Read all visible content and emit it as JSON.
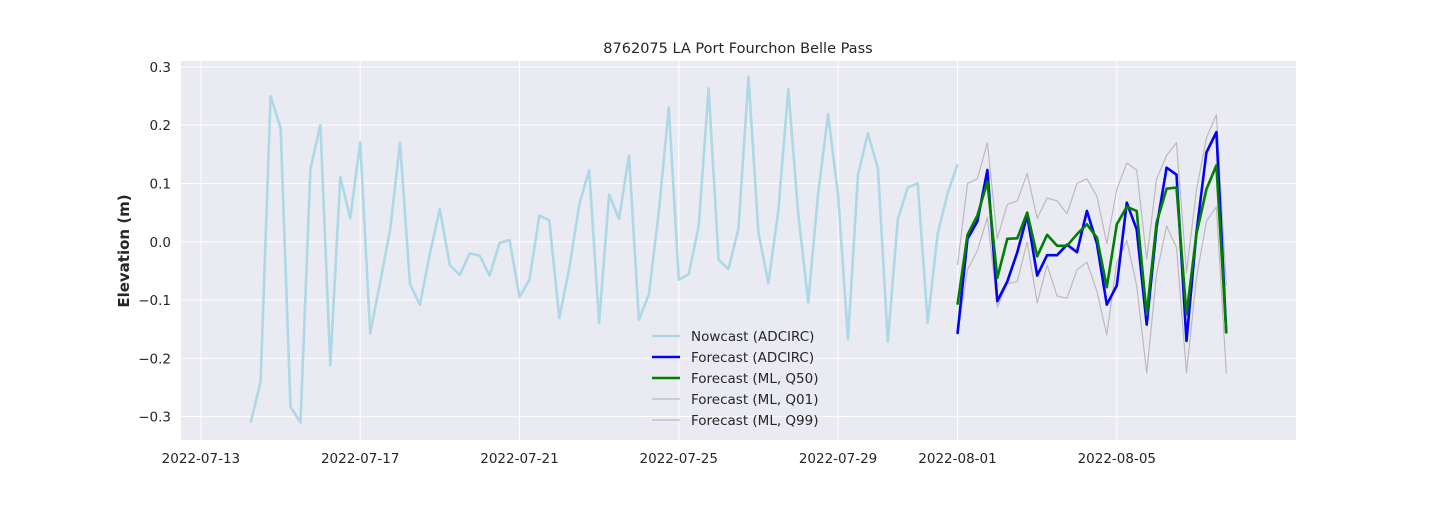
{
  "chart_data": {
    "type": "line",
    "title": "8762075 LA Port Fourchon Belle Pass",
    "xlabel": "",
    "ylabel": "Elevation (m)",
    "x_type": "date",
    "xlim": [
      "2022-07-12 12:00",
      "2022-08-09 12:00"
    ],
    "ylim": [
      -0.34,
      0.31
    ],
    "xticks": [
      "2022-07-13",
      "2022-07-17",
      "2022-07-21",
      "2022-07-25",
      "2022-07-29",
      "2022-08-01",
      "2022-08-05"
    ],
    "yticks": [
      -0.3,
      -0.2,
      -0.1,
      0.0,
      0.1,
      0.2,
      0.3
    ],
    "ytick_labels": [
      "−0.3",
      "−0.2",
      "−0.1",
      "0.0",
      "0.1",
      "0.2",
      "0.3"
    ],
    "grid": true,
    "legend_position": "lower center",
    "background": "#eaeaf2",
    "series": [
      {
        "name": "Nowcast (ADCIRC)",
        "color": "#add8e6",
        "style": "thick",
        "x": [
          "2022-07-14 06:00",
          "2022-07-14 12:00",
          "2022-07-14 18:00",
          "2022-07-15 00:00",
          "2022-07-15 06:00",
          "2022-07-15 12:00",
          "2022-07-15 18:00",
          "2022-07-16 00:00",
          "2022-07-16 06:00",
          "2022-07-16 12:00",
          "2022-07-16 18:00",
          "2022-07-17 00:00",
          "2022-07-17 06:00",
          "2022-07-17 12:00",
          "2022-07-17 18:00",
          "2022-07-18 00:00",
          "2022-07-18 06:00",
          "2022-07-18 12:00",
          "2022-07-18 18:00",
          "2022-07-19 00:00",
          "2022-07-19 06:00",
          "2022-07-19 12:00",
          "2022-07-19 18:00",
          "2022-07-20 00:00",
          "2022-07-20 06:00",
          "2022-07-20 12:00",
          "2022-07-20 18:00",
          "2022-07-21 00:00",
          "2022-07-21 06:00",
          "2022-07-21 12:00",
          "2022-07-21 18:00",
          "2022-07-22 00:00",
          "2022-07-22 06:00",
          "2022-07-22 12:00",
          "2022-07-22 18:00",
          "2022-07-23 00:00",
          "2022-07-23 06:00",
          "2022-07-23 12:00",
          "2022-07-23 18:00",
          "2022-07-24 00:00",
          "2022-07-24 06:00",
          "2022-07-24 12:00",
          "2022-07-24 18:00",
          "2022-07-25 00:00",
          "2022-07-25 06:00",
          "2022-07-25 12:00",
          "2022-07-25 18:00",
          "2022-07-26 00:00",
          "2022-07-26 06:00",
          "2022-07-26 12:00",
          "2022-07-26 18:00",
          "2022-07-27 00:00",
          "2022-07-27 06:00",
          "2022-07-27 12:00",
          "2022-07-27 18:00",
          "2022-07-28 00:00",
          "2022-07-28 06:00",
          "2022-07-28 12:00",
          "2022-07-28 18:00",
          "2022-07-29 00:00",
          "2022-07-29 06:00",
          "2022-07-29 12:00",
          "2022-07-29 18:00",
          "2022-07-30 00:00",
          "2022-07-30 06:00",
          "2022-07-30 12:00",
          "2022-07-30 18:00",
          "2022-07-31 00:00",
          "2022-07-31 06:00",
          "2022-07-31 12:00",
          "2022-07-31 18:00",
          "2022-08-01 00:00"
        ],
        "values": [
          -0.31,
          -0.24,
          0.25,
          0.195,
          -0.283,
          -0.31,
          0.125,
          0.2,
          -0.212,
          0.111,
          0.04,
          0.17,
          -0.157,
          -0.07,
          0.02,
          0.17,
          -0.073,
          -0.108,
          -0.02,
          0.056,
          -0.04,
          -0.057,
          -0.02,
          -0.024,
          -0.058,
          -0.002,
          0.003,
          -0.095,
          -0.065,
          0.045,
          0.037,
          -0.131,
          -0.045,
          0.063,
          0.123,
          -0.139,
          0.081,
          0.039,
          0.148,
          -0.134,
          -0.09,
          0.053,
          0.23,
          -0.065,
          -0.056,
          0.027,
          0.263,
          -0.031,
          -0.047,
          0.023,
          0.283,
          0.016,
          -0.071,
          0.053,
          0.262,
          0.049,
          -0.104,
          0.082,
          0.219,
          0.08,
          -0.167,
          0.115,
          0.186,
          0.126,
          -0.171,
          0.038,
          0.093,
          0.1,
          -0.139,
          0.013,
          0.083,
          0.133
        ]
      },
      {
        "name": "Forecast (ADCIRC)",
        "color": "#0000ff",
        "style": "thick",
        "x": [
          "2022-08-01 00:00",
          "2022-08-01 06:00",
          "2022-08-01 12:00",
          "2022-08-01 18:00",
          "2022-08-02 00:00",
          "2022-08-02 06:00",
          "2022-08-02 12:00",
          "2022-08-02 18:00",
          "2022-08-03 00:00",
          "2022-08-03 06:00",
          "2022-08-03 12:00",
          "2022-08-03 18:00",
          "2022-08-04 00:00",
          "2022-08-04 06:00",
          "2022-08-04 12:00",
          "2022-08-04 18:00",
          "2022-08-05 00:00",
          "2022-08-05 06:00",
          "2022-08-05 12:00",
          "2022-08-05 18:00",
          "2022-08-06 00:00",
          "2022-08-06 06:00",
          "2022-08-06 12:00",
          "2022-08-06 18:00",
          "2022-08-07 00:00",
          "2022-08-07 06:00",
          "2022-08-07 12:00",
          "2022-08-07 18:00"
        ],
        "values": [
          -0.158,
          0.005,
          0.035,
          0.123,
          -0.102,
          -0.068,
          -0.018,
          0.045,
          -0.058,
          -0.023,
          -0.023,
          -0.005,
          -0.018,
          0.053,
          -0.003,
          -0.108,
          -0.075,
          0.067,
          0.021,
          -0.142,
          0.025,
          0.127,
          0.115,
          -0.17,
          0.015,
          0.153,
          0.188,
          -0.157
        ]
      },
      {
        "name": "Forecast (ML, Q50)",
        "color": "#008000",
        "style": "thick",
        "x": [
          "2022-08-01 00:00",
          "2022-08-01 06:00",
          "2022-08-01 12:00",
          "2022-08-01 18:00",
          "2022-08-02 00:00",
          "2022-08-02 06:00",
          "2022-08-02 12:00",
          "2022-08-02 18:00",
          "2022-08-03 00:00",
          "2022-08-03 06:00",
          "2022-08-03 12:00",
          "2022-08-03 18:00",
          "2022-08-04 00:00",
          "2022-08-04 06:00",
          "2022-08-04 12:00",
          "2022-08-04 18:00",
          "2022-08-05 00:00",
          "2022-08-05 06:00",
          "2022-08-05 12:00",
          "2022-08-05 18:00",
          "2022-08-06 00:00",
          "2022-08-06 06:00",
          "2022-08-06 12:00",
          "2022-08-06 18:00",
          "2022-08-07 00:00",
          "2022-08-07 06:00",
          "2022-08-07 12:00",
          "2022-08-07 18:00"
        ],
        "values": [
          -0.108,
          0.012,
          0.045,
          0.103,
          -0.062,
          0.005,
          0.006,
          0.05,
          -0.025,
          0.012,
          -0.007,
          -0.007,
          0.013,
          0.03,
          0.007,
          -0.078,
          0.03,
          0.06,
          0.053,
          -0.125,
          0.033,
          0.091,
          0.093,
          -0.125,
          0.013,
          0.09,
          0.131,
          -0.157
        ]
      },
      {
        "name": "Forecast (ML, Q01)",
        "color": "#bbbbbb",
        "style": "thin",
        "x": [
          "2022-08-01 00:00",
          "2022-08-01 06:00",
          "2022-08-01 12:00",
          "2022-08-01 18:00",
          "2022-08-02 00:00",
          "2022-08-02 06:00",
          "2022-08-02 12:00",
          "2022-08-02 18:00",
          "2022-08-03 00:00",
          "2022-08-03 06:00",
          "2022-08-03 12:00",
          "2022-08-03 18:00",
          "2022-08-04 00:00",
          "2022-08-04 06:00",
          "2022-08-04 12:00",
          "2022-08-04 18:00",
          "2022-08-05 00:00",
          "2022-08-05 06:00",
          "2022-08-05 12:00",
          "2022-08-05 18:00",
          "2022-08-06 00:00",
          "2022-08-06 06:00",
          "2022-08-06 12:00",
          "2022-08-06 18:00",
          "2022-08-07 00:00",
          "2022-08-07 06:00",
          "2022-08-07 12:00",
          "2022-08-07 18:00"
        ],
        "values": [
          -0.16,
          -0.048,
          -0.015,
          0.042,
          -0.112,
          -0.072,
          -0.068,
          0.0,
          -0.105,
          -0.04,
          -0.093,
          -0.097,
          -0.048,
          -0.035,
          -0.085,
          -0.16,
          -0.035,
          0.002,
          -0.075,
          -0.225,
          -0.055,
          0.027,
          -0.01,
          -0.225,
          -0.063,
          0.035,
          0.06,
          -0.225
        ]
      },
      {
        "name": "Forecast (ML, Q99)",
        "color": "#bbbbbb",
        "style": "thin",
        "x": [
          "2022-08-01 00:00",
          "2022-08-01 06:00",
          "2022-08-01 12:00",
          "2022-08-01 18:00",
          "2022-08-02 00:00",
          "2022-08-02 06:00",
          "2022-08-02 12:00",
          "2022-08-02 18:00",
          "2022-08-03 00:00",
          "2022-08-03 06:00",
          "2022-08-03 12:00",
          "2022-08-03 18:00",
          "2022-08-04 00:00",
          "2022-08-04 06:00",
          "2022-08-04 12:00",
          "2022-08-04 18:00",
          "2022-08-05 00:00",
          "2022-08-05 06:00",
          "2022-08-05 12:00",
          "2022-08-05 18:00",
          "2022-08-06 00:00",
          "2022-08-06 06:00",
          "2022-08-06 12:00",
          "2022-08-06 18:00",
          "2022-08-07 00:00",
          "2022-08-07 06:00",
          "2022-08-07 12:00",
          "2022-08-07 18:00"
        ],
        "values": [
          -0.04,
          0.1,
          0.108,
          0.17,
          0.005,
          0.064,
          0.07,
          0.117,
          0.04,
          0.075,
          0.07,
          0.048,
          0.1,
          0.108,
          0.078,
          -0.003,
          0.09,
          0.135,
          0.123,
          -0.03,
          0.108,
          0.148,
          0.17,
          -0.053,
          0.088,
          0.178,
          0.218,
          -0.075
        ]
      }
    ]
  }
}
